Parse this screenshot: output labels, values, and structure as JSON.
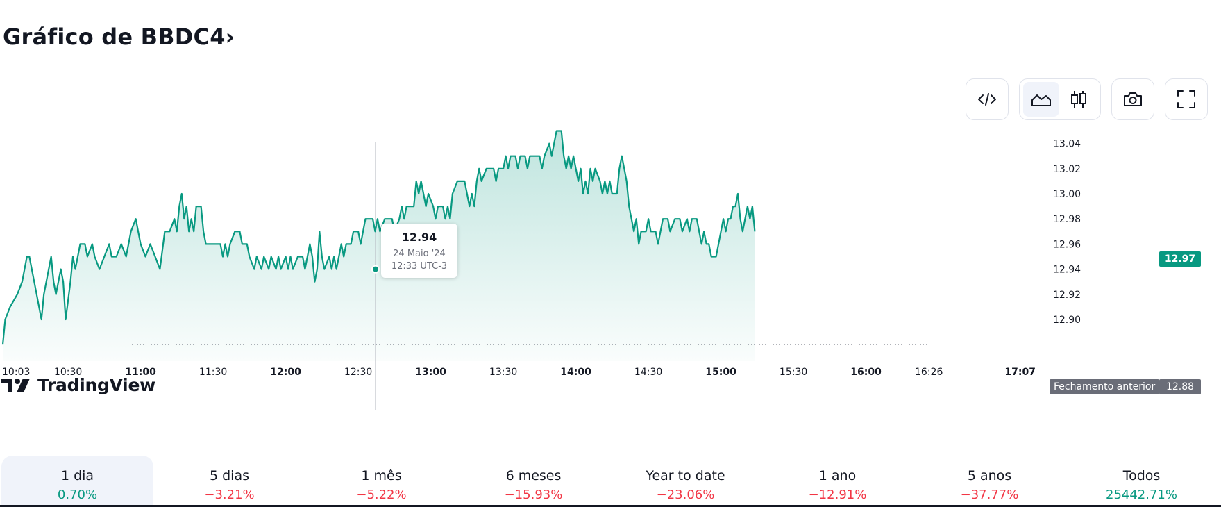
{
  "header": {
    "title": "Gráfico de BBDC4",
    "title_chevron": "›"
  },
  "toolbar": {
    "embed_icon": "code-icon",
    "area_icon": "area-chart-icon",
    "candles_icon": "candlestick-icon",
    "snapshot_icon": "camera-icon",
    "fullscreen_icon": "fullscreen-icon"
  },
  "colors": {
    "line": "#089981",
    "positive": "#089981",
    "negative": "#f23645",
    "label_bg": "#6a6d78"
  },
  "tooltip": {
    "price": "12.94",
    "date": "24 Maio '24",
    "time": "12:33 UTC-3"
  },
  "logo_text": "TradingView",
  "prev_close": {
    "label": "Fechamento anterior",
    "value": "12.88"
  },
  "last_price": "12.97",
  "chart_data": {
    "type": "area",
    "title": "",
    "xlabel": "",
    "ylabel": "",
    "ylim": [
      12.875,
      13.05
    ],
    "y_ticks": [
      "13.04",
      "13.02",
      "13.00",
      "12.98",
      "12.96",
      "12.94",
      "12.92",
      "12.90"
    ],
    "x_ticks": [
      {
        "label": "10:03",
        "t": 603,
        "bold": false
      },
      {
        "label": "10:30",
        "t": 630,
        "bold": false
      },
      {
        "label": "11:00",
        "t": 660,
        "bold": true
      },
      {
        "label": "11:30",
        "t": 690,
        "bold": false
      },
      {
        "label": "12:00",
        "t": 720,
        "bold": true
      },
      {
        "label": "12:30",
        "t": 750,
        "bold": false
      },
      {
        "label": "13:00",
        "t": 780,
        "bold": true
      },
      {
        "label": "13:30",
        "t": 810,
        "bold": false
      },
      {
        "label": "14:00",
        "t": 840,
        "bold": true
      },
      {
        "label": "14:30",
        "t": 870,
        "bold": false
      },
      {
        "label": "15:00",
        "t": 900,
        "bold": true
      },
      {
        "label": "15:30",
        "t": 930,
        "bold": false
      },
      {
        "label": "16:00",
        "t": 960,
        "bold": true
      },
      {
        "label": "16:26",
        "t": 986,
        "bold": false
      },
      {
        "label": "17:07",
        "t": 1027,
        "bold": true
      }
    ],
    "series": [
      {
        "values": [
          [
            603,
            12.88
          ],
          [
            604,
            12.9
          ],
          [
            606,
            12.91
          ],
          [
            609,
            12.92
          ],
          [
            611,
            12.93
          ],
          [
            613,
            12.95
          ],
          [
            614,
            12.95
          ],
          [
            616,
            12.93
          ],
          [
            617,
            12.92
          ],
          [
            619,
            12.9
          ],
          [
            620,
            12.92
          ],
          [
            622,
            12.94
          ],
          [
            623,
            12.95
          ],
          [
            624,
            12.93
          ],
          [
            625,
            12.92
          ],
          [
            627,
            12.94
          ],
          [
            628,
            12.93
          ],
          [
            629,
            12.9
          ],
          [
            631,
            12.93
          ],
          [
            632,
            12.95
          ],
          [
            633,
            12.94
          ],
          [
            635,
            12.96
          ],
          [
            637,
            12.96
          ],
          [
            638,
            12.95
          ],
          [
            640,
            12.96
          ],
          [
            641,
            12.95
          ],
          [
            643,
            12.94
          ],
          [
            645,
            12.95
          ],
          [
            647,
            12.96
          ],
          [
            648,
            12.95
          ],
          [
            650,
            12.95
          ],
          [
            652,
            12.96
          ],
          [
            654,
            12.95
          ],
          [
            656,
            12.97
          ],
          [
            658,
            12.98
          ],
          [
            660,
            12.96
          ],
          [
            662,
            12.95
          ],
          [
            664,
            12.96
          ],
          [
            666,
            12.95
          ],
          [
            668,
            12.94
          ],
          [
            670,
            12.97
          ],
          [
            672,
            12.97
          ],
          [
            674,
            12.98
          ],
          [
            675,
            12.97
          ],
          [
            676,
            12.99
          ],
          [
            677,
            13.0
          ],
          [
            678,
            12.98
          ],
          [
            679,
            12.99
          ],
          [
            680,
            12.97
          ],
          [
            681,
            12.98
          ],
          [
            682,
            12.97
          ],
          [
            683,
            12.99
          ],
          [
            685,
            12.99
          ],
          [
            686,
            12.97
          ],
          [
            687,
            12.96
          ],
          [
            689,
            12.96
          ],
          [
            691,
            12.96
          ],
          [
            693,
            12.96
          ],
          [
            694,
            12.95
          ],
          [
            695,
            12.96
          ],
          [
            696,
            12.95
          ],
          [
            697,
            12.96
          ],
          [
            699,
            12.97
          ],
          [
            701,
            12.97
          ],
          [
            702,
            12.96
          ],
          [
            704,
            12.96
          ],
          [
            705,
            12.95
          ],
          [
            707,
            12.94
          ],
          [
            708,
            12.95
          ],
          [
            710,
            12.94
          ],
          [
            711,
            12.95
          ],
          [
            713,
            12.94
          ],
          [
            714,
            12.95
          ],
          [
            716,
            12.94
          ],
          [
            717,
            12.95
          ],
          [
            718,
            12.94
          ],
          [
            720,
            12.95
          ],
          [
            721,
            12.94
          ],
          [
            722,
            12.95
          ],
          [
            723,
            12.94
          ],
          [
            725,
            12.95
          ],
          [
            727,
            12.95
          ],
          [
            728,
            12.94
          ],
          [
            729,
            12.95
          ],
          [
            730,
            12.96
          ],
          [
            731,
            12.95
          ],
          [
            732,
            12.93
          ],
          [
            733,
            12.94
          ],
          [
            734,
            12.97
          ],
          [
            735,
            12.95
          ],
          [
            736,
            12.94
          ],
          [
            738,
            12.95
          ],
          [
            739,
            12.94
          ],
          [
            740,
            12.95
          ],
          [
            741,
            12.94
          ],
          [
            742,
            12.95
          ],
          [
            743,
            12.96
          ],
          [
            744,
            12.95
          ],
          [
            745,
            12.96
          ],
          [
            747,
            12.96
          ],
          [
            748,
            12.97
          ],
          [
            750,
            12.97
          ],
          [
            751,
            12.96
          ],
          [
            752,
            12.97
          ],
          [
            753,
            12.98
          ],
          [
            756,
            12.98
          ],
          [
            757,
            12.97
          ],
          [
            758,
            12.98
          ],
          [
            759,
            12.97
          ],
          [
            761,
            12.98
          ],
          [
            764,
            12.98
          ],
          [
            765,
            12.97
          ],
          [
            767,
            12.98
          ],
          [
            768,
            12.99
          ],
          [
            769,
            12.98
          ],
          [
            770,
            12.99
          ],
          [
            773,
            12.99
          ],
          [
            774,
            13.01
          ],
          [
            775,
            13.0
          ],
          [
            776,
            13.01
          ],
          [
            777,
            13.0
          ],
          [
            778,
            12.99
          ],
          [
            779,
            13.0
          ],
          [
            781,
            12.99
          ],
          [
            782,
            12.98
          ],
          [
            783,
            12.99
          ],
          [
            785,
            12.99
          ],
          [
            786,
            12.98
          ],
          [
            787,
            12.99
          ],
          [
            788,
            12.98
          ],
          [
            789,
            13.0
          ],
          [
            791,
            13.01
          ],
          [
            794,
            13.01
          ],
          [
            795,
            13.0
          ],
          [
            796,
            12.99
          ],
          [
            797,
            13.0
          ],
          [
            798,
            12.99
          ],
          [
            799,
            13.01
          ],
          [
            800,
            13.02
          ],
          [
            801,
            13.01
          ],
          [
            803,
            13.02
          ],
          [
            806,
            13.02
          ],
          [
            807,
            13.01
          ],
          [
            808,
            13.02
          ],
          [
            810,
            13.02
          ],
          [
            811,
            13.03
          ],
          [
            812,
            13.02
          ],
          [
            813,
            13.03
          ],
          [
            815,
            13.03
          ],
          [
            816,
            13.02
          ],
          [
            817,
            13.03
          ],
          [
            819,
            13.03
          ],
          [
            820,
            13.02
          ],
          [
            821,
            13.03
          ],
          [
            823,
            13.03
          ],
          [
            825,
            13.03
          ],
          [
            826,
            13.02
          ],
          [
            827,
            13.03
          ],
          [
            829,
            13.04
          ],
          [
            830,
            13.03
          ],
          [
            831,
            13.04
          ],
          [
            832,
            13.05
          ],
          [
            834,
            13.05
          ],
          [
            835,
            13.03
          ],
          [
            836,
            13.02
          ],
          [
            837,
            13.03
          ],
          [
            838,
            13.02
          ],
          [
            839,
            13.03
          ],
          [
            840,
            13.02
          ],
          [
            841,
            13.01
          ],
          [
            842,
            13.02
          ],
          [
            843,
            13.0
          ],
          [
            844,
            13.01
          ],
          [
            845,
            13.0
          ],
          [
            846,
            13.02
          ],
          [
            847,
            13.01
          ],
          [
            848,
            13.02
          ],
          [
            850,
            13.01
          ],
          [
            851,
            13.0
          ],
          [
            852,
            13.01
          ],
          [
            853,
            13.0
          ],
          [
            854,
            13.01
          ],
          [
            855,
            13.0
          ],
          [
            857,
            13.0
          ],
          [
            858,
            13.02
          ],
          [
            859,
            13.03
          ],
          [
            860,
            13.02
          ],
          [
            861,
            13.01
          ],
          [
            862,
            12.99
          ],
          [
            863,
            12.98
          ],
          [
            864,
            12.97
          ],
          [
            865,
            12.98
          ],
          [
            866,
            12.96
          ],
          [
            867,
            12.97
          ],
          [
            869,
            12.97
          ],
          [
            870,
            12.98
          ],
          [
            871,
            12.97
          ],
          [
            873,
            12.97
          ],
          [
            874,
            12.96
          ],
          [
            875,
            12.97
          ],
          [
            876,
            12.98
          ],
          [
            878,
            12.98
          ],
          [
            879,
            12.97
          ],
          [
            881,
            12.98
          ],
          [
            883,
            12.98
          ],
          [
            884,
            12.97
          ],
          [
            886,
            12.98
          ],
          [
            887,
            12.97
          ],
          [
            888,
            12.98
          ],
          [
            890,
            12.98
          ],
          [
            891,
            12.97
          ],
          [
            892,
            12.96
          ],
          [
            893,
            12.97
          ],
          [
            894,
            12.96
          ],
          [
            895,
            12.96
          ],
          [
            896,
            12.95
          ],
          [
            898,
            12.95
          ],
          [
            899,
            12.96
          ],
          [
            900,
            12.97
          ],
          [
            901,
            12.98
          ],
          [
            902,
            12.97
          ],
          [
            903,
            12.98
          ],
          [
            904,
            12.98
          ],
          [
            905,
            12.99
          ],
          [
            906,
            12.99
          ],
          [
            907,
            13.0
          ],
          [
            908,
            12.98
          ],
          [
            909,
            12.97
          ],
          [
            910,
            12.98
          ],
          [
            911,
            12.99
          ],
          [
            912,
            12.98
          ],
          [
            913,
            12.99
          ],
          [
            914,
            12.97
          ]
        ]
      }
    ]
  },
  "periods": [
    {
      "label": "1 dia",
      "change": "0.70%",
      "sign": "pos",
      "active": true
    },
    {
      "label": "5 dias",
      "change": "−3.21%",
      "sign": "neg",
      "active": false
    },
    {
      "label": "1 mês",
      "change": "−5.22%",
      "sign": "neg",
      "active": false
    },
    {
      "label": "6 meses",
      "change": "−15.93%",
      "sign": "neg",
      "active": false
    },
    {
      "label": "Year to date",
      "change": "−23.06%",
      "sign": "neg",
      "active": false
    },
    {
      "label": "1 ano",
      "change": "−12.91%",
      "sign": "neg",
      "active": false
    },
    {
      "label": "5 anos",
      "change": "−37.77%",
      "sign": "neg",
      "active": false
    },
    {
      "label": "Todos",
      "change": "25442.71%",
      "sign": "pos",
      "active": false
    }
  ]
}
